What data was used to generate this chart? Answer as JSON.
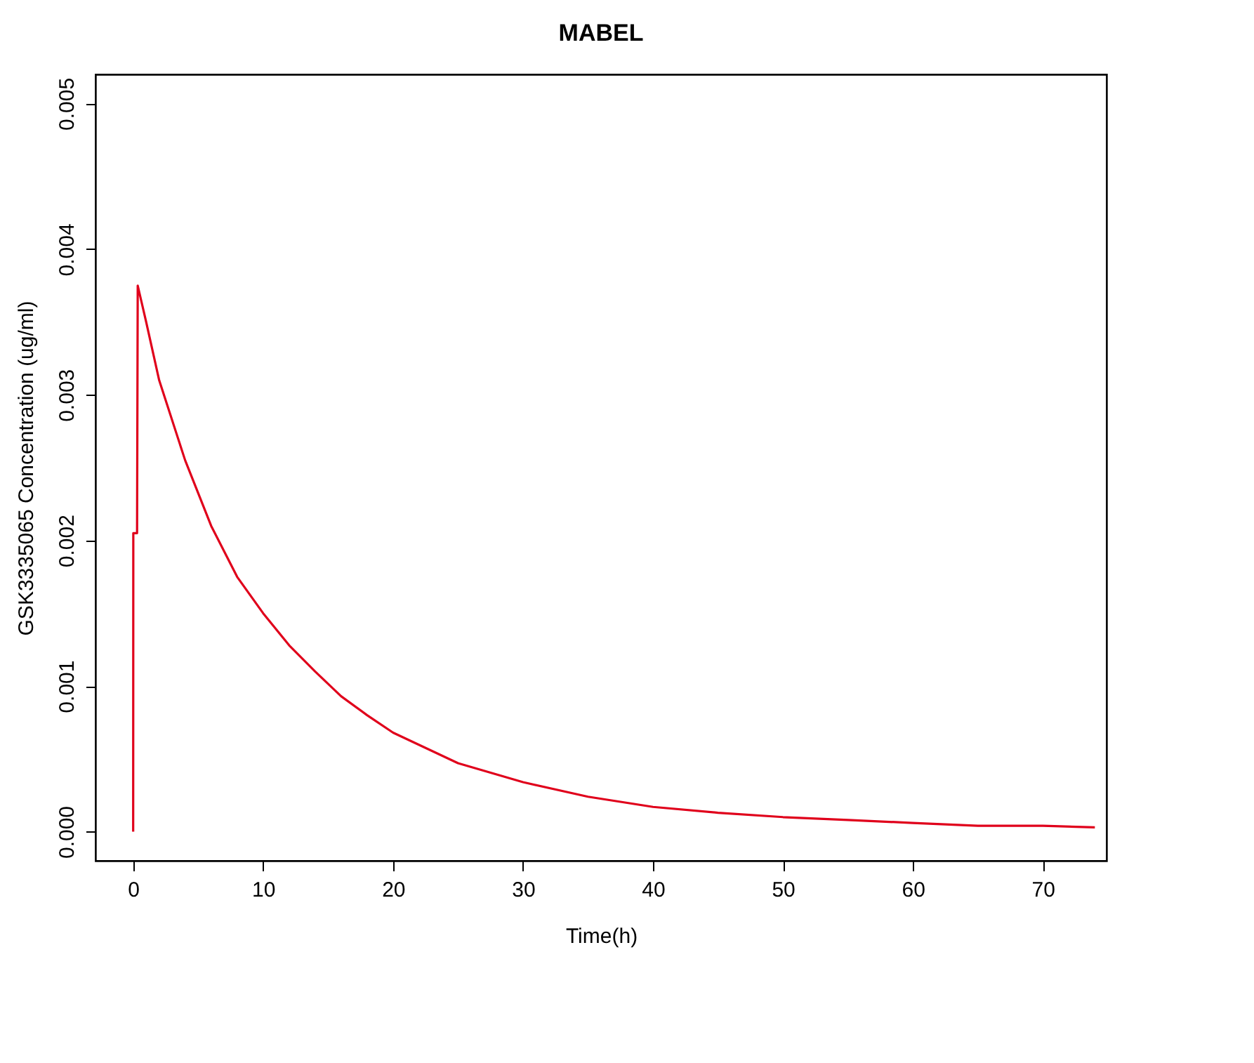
{
  "chart_data": {
    "type": "line",
    "title": "MABEL",
    "xlabel": "Time(h)",
    "ylabel": "GSK3335065 Concentration (ug/ml)",
    "xlim": [
      -2.9,
      74.9
    ],
    "xticks": [
      0,
      10,
      20,
      30,
      40,
      50,
      60,
      70
    ],
    "ylim": [
      -0.0002,
      0.0052
    ],
    "yticks": [
      {
        "value": 0,
        "label": "0.000"
      },
      {
        "value": 0.001,
        "label": "0.001"
      },
      {
        "value": 0.002,
        "label": "0.002"
      },
      {
        "value": 0.003,
        "label": "0.003"
      },
      {
        "value": 0.004,
        "label": "0.004"
      },
      {
        "value": 0.005,
        "label": "0.005"
      }
    ],
    "grid": false,
    "marker": "none",
    "line_style": "solid",
    "series": [
      {
        "color": "#e0001b",
        "x": [
          0,
          0.01,
          0.3,
          0.35,
          1,
          2,
          4,
          6,
          8,
          10,
          12,
          14,
          16,
          18,
          20,
          25,
          30,
          35,
          40,
          45,
          50,
          55,
          60,
          65,
          70,
          74
        ],
        "values": [
          0,
          0.00205,
          0.00205,
          0.00375,
          0.0035,
          0.0031,
          0.00255,
          0.0021,
          0.00175,
          0.0015,
          0.00128,
          0.0011,
          0.00093,
          0.0008,
          0.00068,
          0.00047,
          0.00034,
          0.00024,
          0.00017,
          0.00013,
          0.0001,
          8e-05,
          6e-05,
          4e-05,
          4e-05,
          3e-05
        ]
      }
    ]
  }
}
